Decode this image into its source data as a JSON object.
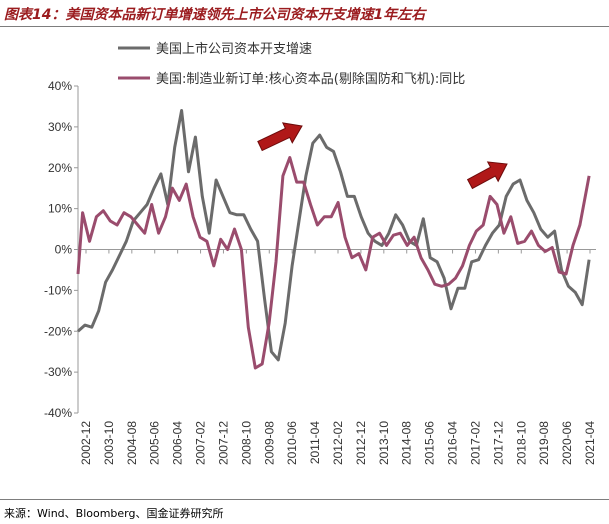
{
  "header": {
    "title": "图表14：美国资本品新订单增速领先上市公司资本开支增速1年左右",
    "source": "来源：Wind、Bloomberg、国金证券研究所"
  },
  "colors": {
    "series1": "#6b6b6b",
    "series2": "#9a4c6d",
    "arrow": "#b01818"
  },
  "chart_data": {
    "type": "line",
    "title": "",
    "xlabel": "",
    "ylabel": "",
    "ylim": [
      -0.4,
      0.4
    ],
    "y_ticks": [
      "40%",
      "30%",
      "20%",
      "10%",
      "0%",
      "-10%",
      "-20%",
      "-30%",
      "-40%"
    ],
    "x_ticks": [
      "2002-12",
      "2003-10",
      "2004-08",
      "2005-06",
      "2006-04",
      "2007-02",
      "2007-12",
      "2008-10",
      "2009-08",
      "2010-06",
      "2011-04",
      "2012-02",
      "2012-12",
      "2013-10",
      "2014-08",
      "2015-06",
      "2016-04",
      "2017-02",
      "2017-12",
      "2018-10",
      "2019-08",
      "2020-06",
      "2021-04"
    ],
    "x_range": [
      2002.917,
      2021.667
    ],
    "legend_position": "top",
    "series": [
      {
        "name": "美国上市公司资本开支增速",
        "color": "#6b6b6b",
        "points": [
          [
            2002.917,
            -0.2
          ],
          [
            2003.167,
            -0.185
          ],
          [
            2003.417,
            -0.19
          ],
          [
            2003.667,
            -0.15
          ],
          [
            2003.917,
            -0.08
          ],
          [
            2004.167,
            -0.05
          ],
          [
            2004.417,
            -0.015
          ],
          [
            2004.667,
            0.02
          ],
          [
            2004.917,
            0.07
          ],
          [
            2005.167,
            0.09
          ],
          [
            2005.417,
            0.11
          ],
          [
            2005.667,
            0.15
          ],
          [
            2005.917,
            0.185
          ],
          [
            2006.167,
            0.11
          ],
          [
            2006.417,
            0.25
          ],
          [
            2006.667,
            0.34
          ],
          [
            2006.917,
            0.19
          ],
          [
            2007.167,
            0.275
          ],
          [
            2007.417,
            0.13
          ],
          [
            2007.667,
            0.04
          ],
          [
            2007.917,
            0.17
          ],
          [
            2008.167,
            0.13
          ],
          [
            2008.417,
            0.09
          ],
          [
            2008.667,
            0.085
          ],
          [
            2008.917,
            0.085
          ],
          [
            2009.167,
            0.05
          ],
          [
            2009.417,
            0.02
          ],
          [
            2009.667,
            -0.12
          ],
          [
            2009.917,
            -0.25
          ],
          [
            2010.167,
            -0.27
          ],
          [
            2010.417,
            -0.18
          ],
          [
            2010.667,
            -0.04
          ],
          [
            2010.917,
            0.07
          ],
          [
            2011.167,
            0.18
          ],
          [
            2011.417,
            0.26
          ],
          [
            2011.667,
            0.28
          ],
          [
            2011.917,
            0.25
          ],
          [
            2012.167,
            0.24
          ],
          [
            2012.417,
            0.19
          ],
          [
            2012.667,
            0.13
          ],
          [
            2012.917,
            0.13
          ],
          [
            2013.167,
            0.08
          ],
          [
            2013.417,
            0.04
          ],
          [
            2013.667,
            0.02
          ],
          [
            2013.917,
            0.01
          ],
          [
            2014.167,
            0.04
          ],
          [
            2014.417,
            0.085
          ],
          [
            2014.667,
            0.06
          ],
          [
            2014.917,
            0.02
          ],
          [
            2015.167,
            0.01
          ],
          [
            2015.417,
            0.075
          ],
          [
            2015.667,
            -0.02
          ],
          [
            2015.917,
            -0.03
          ],
          [
            2016.167,
            -0.07
          ],
          [
            2016.417,
            -0.145
          ],
          [
            2016.667,
            -0.095
          ],
          [
            2016.917,
            -0.095
          ],
          [
            2017.167,
            -0.03
          ],
          [
            2017.417,
            -0.025
          ],
          [
            2017.667,
            0.01
          ],
          [
            2017.917,
            0.04
          ],
          [
            2018.167,
            0.06
          ],
          [
            2018.417,
            0.13
          ],
          [
            2018.667,
            0.16
          ],
          [
            2018.917,
            0.17
          ],
          [
            2019.167,
            0.12
          ],
          [
            2019.417,
            0.09
          ],
          [
            2019.667,
            0.05
          ],
          [
            2019.917,
            0.03
          ],
          [
            2020.167,
            0.045
          ],
          [
            2020.417,
            -0.05
          ],
          [
            2020.667,
            -0.09
          ],
          [
            2020.917,
            -0.105
          ],
          [
            2021.167,
            -0.135
          ],
          [
            2021.417,
            -0.025
          ]
        ]
      },
      {
        "name": "美国:制造业新订单:核心资本品(剔除国防和飞机):同比",
        "color": "#9a4c6d",
        "points": [
          [
            2002.917,
            -0.06
          ],
          [
            2003.083,
            0.09
          ],
          [
            2003.333,
            0.02
          ],
          [
            2003.583,
            0.08
          ],
          [
            2003.833,
            0.095
          ],
          [
            2004.083,
            0.07
          ],
          [
            2004.333,
            0.06
          ],
          [
            2004.583,
            0.09
          ],
          [
            2004.833,
            0.08
          ],
          [
            2005.083,
            0.06
          ],
          [
            2005.333,
            0.04
          ],
          [
            2005.583,
            0.11
          ],
          [
            2005.833,
            0.04
          ],
          [
            2006.083,
            0.08
          ],
          [
            2006.333,
            0.15
          ],
          [
            2006.583,
            0.12
          ],
          [
            2006.833,
            0.16
          ],
          [
            2007.083,
            0.08
          ],
          [
            2007.333,
            0.03
          ],
          [
            2007.583,
            0.02
          ],
          [
            2007.833,
            -0.04
          ],
          [
            2008.083,
            0.025
          ],
          [
            2008.333,
            0.0
          ],
          [
            2008.583,
            0.05
          ],
          [
            2008.833,
            0.0
          ],
          [
            2009.083,
            -0.19
          ],
          [
            2009.333,
            -0.29
          ],
          [
            2009.583,
            -0.28
          ],
          [
            2009.833,
            -0.18
          ],
          [
            2010.083,
            -0.03
          ],
          [
            2010.333,
            0.18
          ],
          [
            2010.583,
            0.225
          ],
          [
            2010.833,
            0.165
          ],
          [
            2011.083,
            0.165
          ],
          [
            2011.333,
            0.11
          ],
          [
            2011.583,
            0.06
          ],
          [
            2011.833,
            0.08
          ],
          [
            2012.083,
            0.08
          ],
          [
            2012.333,
            0.115
          ],
          [
            2012.583,
            0.03
          ],
          [
            2012.833,
            -0.02
          ],
          [
            2013.083,
            -0.01
          ],
          [
            2013.333,
            -0.05
          ],
          [
            2013.583,
            0.03
          ],
          [
            2013.833,
            0.04
          ],
          [
            2014.083,
            0.01
          ],
          [
            2014.333,
            0.035
          ],
          [
            2014.583,
            0.04
          ],
          [
            2014.833,
            0.01
          ],
          [
            2015.083,
            0.03
          ],
          [
            2015.333,
            -0.02
          ],
          [
            2015.583,
            -0.05
          ],
          [
            2015.833,
            -0.085
          ],
          [
            2016.083,
            -0.09
          ],
          [
            2016.333,
            -0.085
          ],
          [
            2016.583,
            -0.07
          ],
          [
            2016.833,
            -0.04
          ],
          [
            2017.083,
            0.01
          ],
          [
            2017.333,
            0.045
          ],
          [
            2017.583,
            0.06
          ],
          [
            2017.833,
            0.13
          ],
          [
            2018.083,
            0.11
          ],
          [
            2018.333,
            0.04
          ],
          [
            2018.583,
            0.08
          ],
          [
            2018.833,
            0.015
          ],
          [
            2019.083,
            0.02
          ],
          [
            2019.333,
            0.045
          ],
          [
            2019.583,
            0.01
          ],
          [
            2019.833,
            -0.005
          ],
          [
            2020.083,
            0.005
          ],
          [
            2020.333,
            -0.055
          ],
          [
            2020.583,
            -0.06
          ],
          [
            2020.833,
            0.01
          ],
          [
            2021.083,
            0.06
          ],
          [
            2021.417,
            0.18
          ]
        ]
      }
    ]
  }
}
